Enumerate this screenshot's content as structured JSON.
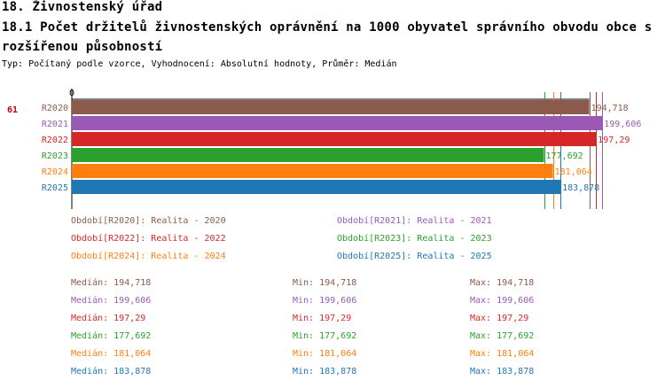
{
  "header": {
    "section": "18. Živnostenský úřad",
    "title": "18.1 Počet držitelů živnostenských oprávnění na 1000 obyvatel správního obvodu obce s rozšířenou působností",
    "subtitle": "Typ: Počítaný podle vzorce, Vyhodnocení: Absolutní hodnoty, Průměr: Medián"
  },
  "chart_data": {
    "type": "bar",
    "orientation": "horizontal",
    "row_label": "61",
    "axis_zero_label": "0",
    "xlim": [
      0,
      200.2
    ],
    "categories": [
      "R2020",
      "R2021",
      "R2022",
      "R2023",
      "R2024",
      "R2025"
    ],
    "values": [
      194.718,
      199.606,
      197.29,
      177.692,
      181.064,
      183.878
    ],
    "value_labels": [
      "194,718",
      "199,606",
      "197,29",
      "177,692",
      "181,064",
      "183,878"
    ],
    "colors": [
      "#8b5a4a",
      "#9b59b6",
      "#d62728",
      "#2ca02c",
      "#ff7f0e",
      "#1f77b4"
    ],
    "legend": [
      "Období[R2020]: Realita - 2020",
      "Období[R2021]: Realita - 2021",
      "Období[R2022]: Realita - 2022",
      "Období[R2023]: Realita - 2023",
      "Období[R2024]: Realita - 2024",
      "Období[R2025]: Realita - 2025"
    ],
    "stats": [
      {
        "median": "Medián: 194,718",
        "min": "Min: 194,718",
        "max": "Max: 194,718"
      },
      {
        "median": "Medián: 199,606",
        "min": "Min: 199,606",
        "max": "Max: 199,606"
      },
      {
        "median": "Medián: 197,29",
        "min": "Min: 197,29",
        "max": "Max: 197,29"
      },
      {
        "median": "Medián: 177,692",
        "min": "Min: 177,692",
        "max": "Max: 177,692"
      },
      {
        "median": "Medián: 181,064",
        "min": "Min: 181,064",
        "max": "Max: 181,064"
      },
      {
        "median": "Medián: 183,878",
        "min": "Min: 183,878",
        "max": "Max: 183,878"
      }
    ]
  }
}
